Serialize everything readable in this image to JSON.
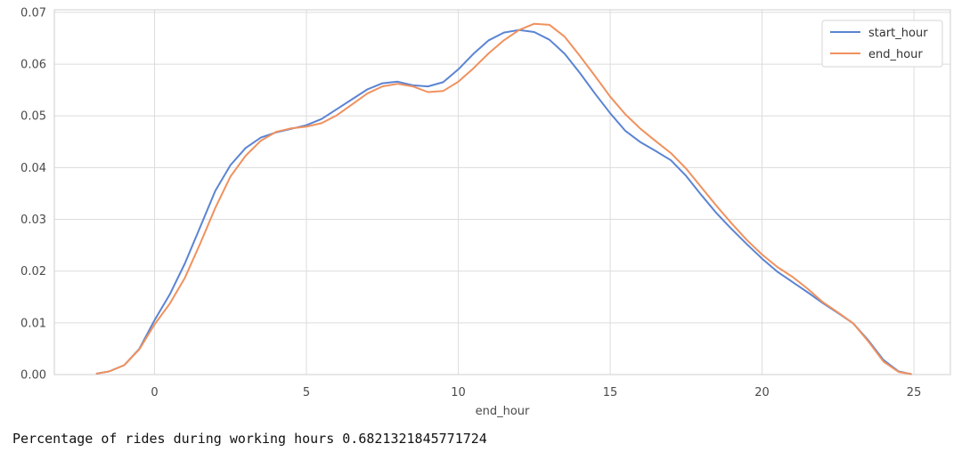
{
  "chart_data": {
    "type": "line",
    "title": "",
    "xlabel": "end_hour",
    "ylabel": "",
    "xlim": [
      -3.3,
      26.2
    ],
    "ylim": [
      0,
      0.0705
    ],
    "x_ticks": [
      0,
      5,
      10,
      15,
      20,
      25
    ],
    "x_tick_labels": [
      "0",
      "5",
      "10",
      "15",
      "20",
      "25"
    ],
    "y_ticks": [
      0.0,
      0.01,
      0.02,
      0.03,
      0.04,
      0.05,
      0.06,
      0.07
    ],
    "y_tick_labels": [
      "0.00",
      "0.01",
      "0.02",
      "0.03",
      "0.04",
      "0.05",
      "0.06",
      "0.07"
    ],
    "grid": true,
    "legend_position": "top-right",
    "series": [
      {
        "name": "start_hour",
        "color": "#5b84d3",
        "x": [
          -1.9,
          -1.5,
          -1.0,
          -0.5,
          0,
          0.5,
          1,
          1.5,
          2,
          2.5,
          3,
          3.5,
          4,
          4.5,
          5,
          5.5,
          6,
          6.5,
          7,
          7.5,
          8,
          8.5,
          9,
          9.5,
          10,
          10.5,
          11,
          11.5,
          12,
          12.5,
          13,
          13.5,
          14,
          14.5,
          15,
          15.5,
          16,
          16.5,
          17,
          17.5,
          18,
          18.5,
          19,
          19.5,
          20,
          20.5,
          21,
          21.5,
          22,
          22.5,
          23,
          23.5,
          24,
          24.5,
          24.9
        ],
        "values": [
          0.0002,
          0.0006,
          0.0018,
          0.005,
          0.0105,
          0.0155,
          0.0215,
          0.0285,
          0.0355,
          0.0405,
          0.0438,
          0.0458,
          0.0468,
          0.0475,
          0.0482,
          0.0494,
          0.0513,
          0.0532,
          0.0551,
          0.0563,
          0.0566,
          0.0559,
          0.0557,
          0.0565,
          0.059,
          0.062,
          0.0646,
          0.0661,
          0.0666,
          0.0662,
          0.0647,
          0.062,
          0.0583,
          0.0543,
          0.0505,
          0.0471,
          0.0449,
          0.0432,
          0.0414,
          0.0384,
          0.0347,
          0.0312,
          0.0281,
          0.0252,
          0.0224,
          0.0199,
          0.0179,
          0.0159,
          0.0138,
          0.0119,
          0.0099,
          0.0066,
          0.0028,
          0.0006,
          0.0001
        ]
      },
      {
        "name": "end_hour",
        "color": "#f0915e",
        "x": [
          -1.9,
          -1.5,
          -1.0,
          -0.5,
          0,
          0.5,
          1,
          1.5,
          2,
          2.5,
          3,
          3.5,
          4,
          4.5,
          5,
          5.5,
          6,
          6.5,
          7,
          7.5,
          8,
          8.5,
          9,
          9.5,
          10,
          10.5,
          11,
          11.5,
          12,
          12.5,
          13,
          13.5,
          14,
          14.5,
          15,
          15.5,
          16,
          16.5,
          17,
          17.5,
          18,
          18.5,
          19,
          19.5,
          20,
          20.5,
          21,
          21.5,
          22,
          22.5,
          23,
          23.5,
          24,
          24.5,
          24.9
        ],
        "values": [
          0.0002,
          0.0006,
          0.0018,
          0.0049,
          0.0097,
          0.0137,
          0.0187,
          0.0253,
          0.0322,
          0.0383,
          0.0423,
          0.0452,
          0.0469,
          0.0476,
          0.0479,
          0.0486,
          0.0501,
          0.0522,
          0.0543,
          0.0557,
          0.0562,
          0.0557,
          0.0546,
          0.0548,
          0.0566,
          0.0592,
          0.0621,
          0.0646,
          0.0666,
          0.0678,
          0.0676,
          0.0653,
          0.0616,
          0.0577,
          0.0537,
          0.0503,
          0.0475,
          0.0451,
          0.0428,
          0.0398,
          0.0362,
          0.0326,
          0.0292,
          0.026,
          0.0232,
          0.0208,
          0.0189,
          0.0166,
          0.014,
          0.012,
          0.0099,
          0.0064,
          0.0025,
          0.0005,
          0.0001
        ]
      }
    ]
  },
  "output": {
    "text": "Percentage of rides during working hours 0.6821321845771724"
  }
}
